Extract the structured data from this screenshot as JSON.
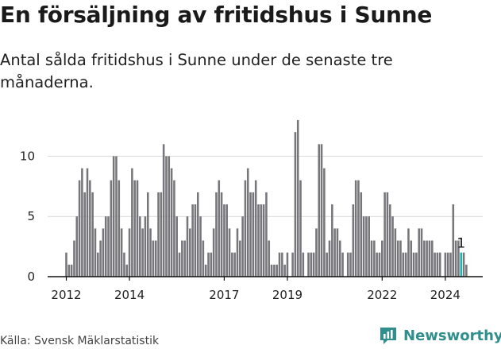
{
  "title": "En försäljning av fritidshus i Sunne",
  "subtitle": "Antal sålda fritidshus i Sunne under de senaste tre månaderna.",
  "source": "Källa: Svensk Mäklarstatistik",
  "brand": "Newsworthy",
  "colors": {
    "bar": "#77767b",
    "highlight": "#23b3ad",
    "grid": "#d9d9d9",
    "brand": "#2f8f8c"
  },
  "chart_data": {
    "type": "bar",
    "x_start": "2012-01",
    "frequency": "monthly",
    "values": [
      2,
      1,
      1,
      3,
      5,
      8,
      9,
      7,
      9,
      8,
      7,
      4,
      2,
      3,
      4,
      5,
      5,
      8,
      10,
      10,
      8,
      4,
      2,
      1,
      4,
      9,
      8,
      8,
      5,
      4,
      5,
      7,
      4,
      3,
      3,
      7,
      7,
      11,
      10,
      10,
      9,
      8,
      5,
      2,
      3,
      3,
      5,
      4,
      6,
      6,
      7,
      5,
      3,
      1,
      2,
      2,
      4,
      7,
      8,
      7,
      6,
      6,
      4,
      2,
      2,
      4,
      3,
      5,
      8,
      9,
      7,
      7,
      8,
      6,
      6,
      6,
      7,
      3,
      1,
      1,
      1,
      2,
      2,
      1,
      2,
      0,
      2,
      12,
      13,
      8,
      2,
      0,
      2,
      2,
      2,
      4,
      11,
      11,
      9,
      2,
      3,
      6,
      4,
      4,
      3,
      2,
      0,
      2,
      2,
      6,
      8,
      8,
      7,
      5,
      5,
      5,
      3,
      3,
      2,
      2,
      3,
      7,
      7,
      6,
      5,
      4,
      3,
      3,
      2,
      2,
      4,
      3,
      2,
      2,
      4,
      4,
      3,
      3,
      3,
      3,
      2,
      2,
      2,
      0,
      2,
      2,
      2,
      6,
      3,
      3,
      2,
      2,
      1
    ],
    "highlight_index": 150,
    "annotation": "1",
    "yticks": [
      0,
      5,
      10
    ],
    "xticks": [
      "2012",
      "2014",
      "2017",
      "2019",
      "2022",
      "2024"
    ],
    "ylim": [
      0,
      13
    ],
    "grid": true
  }
}
